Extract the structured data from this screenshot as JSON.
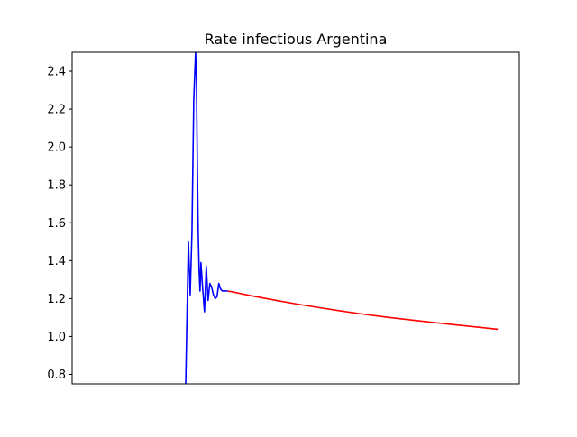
{
  "chart_data": {
    "type": "line",
    "title": "Rate infectious Argentina",
    "xlabel": "",
    "ylabel": "",
    "xlim": [
      0,
      100
    ],
    "ylim": [
      0.75,
      2.5
    ],
    "grid": false,
    "x_ticks_shown": false,
    "y_ticks": [
      "0.8",
      "1.0",
      "1.2",
      "1.4",
      "1.6",
      "1.8",
      "2.0",
      "2.2",
      "2.4"
    ],
    "series": [
      {
        "color": "#0000ff",
        "x": [
          25.4,
          25.6,
          26.0,
          26.4,
          26.8,
          27.2,
          27.6,
          27.8,
          28.0,
          28.2,
          28.4,
          28.6,
          28.8,
          29.2,
          29.6,
          30.0,
          30.4,
          30.8,
          31.2,
          31.6,
          32.0,
          32.4,
          32.8,
          33.2,
          33.6,
          34.0,
          34.4,
          34.8
        ],
        "values": [
          0.75,
          1.0,
          1.5,
          1.22,
          1.55,
          2.25,
          2.5,
          2.35,
          1.9,
          1.55,
          1.35,
          1.24,
          1.39,
          1.25,
          1.13,
          1.37,
          1.19,
          1.28,
          1.26,
          1.22,
          1.2,
          1.21,
          1.28,
          1.25,
          1.24,
          1.24,
          1.24,
          1.24
        ]
      },
      {
        "color": "#ff0000",
        "x": [
          34.8,
          40,
          45,
          50,
          55,
          60,
          65,
          70,
          75,
          80,
          85,
          90,
          95.2
        ],
        "values": [
          1.24,
          1.215,
          1.193,
          1.172,
          1.153,
          1.135,
          1.118,
          1.103,
          1.089,
          1.076,
          1.063,
          1.051,
          1.038
        ]
      }
    ]
  }
}
